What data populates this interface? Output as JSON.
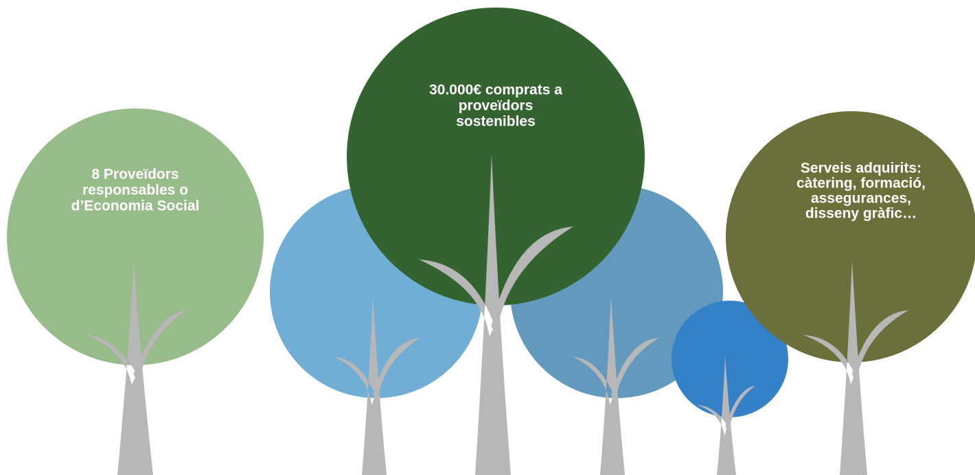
{
  "captions": [
    {
      "lines": [
        "8 Proveïdors",
        "responsables o",
        "d’Economia Social"
      ]
    },
    {
      "lines": [
        "30.000€ comprats a",
        "proveïdors",
        "sostenibles"
      ]
    },
    {
      "lines": [
        "Serveis adquirits:",
        "càtering, formació,",
        "assegurances,",
        "disseny gràfic…"
      ]
    }
  ]
}
